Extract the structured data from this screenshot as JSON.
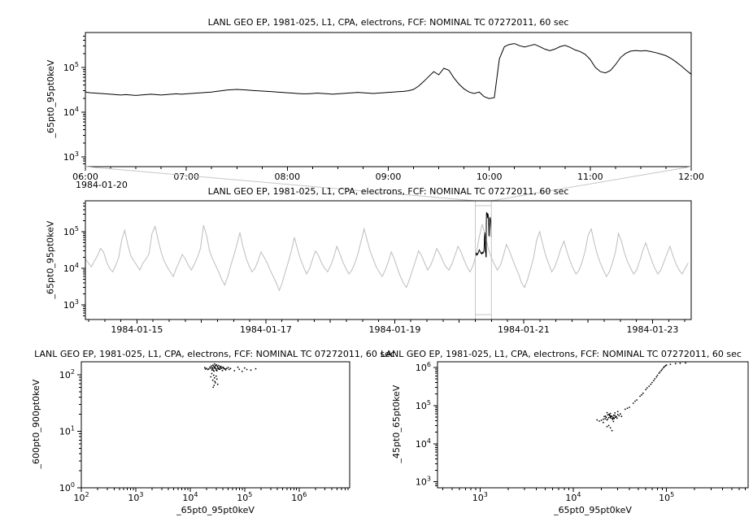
{
  "colors": {
    "background": "#ffffff",
    "foreground": "#000000",
    "context_series": "#bdbdbd",
    "connector": "#c6c6c6"
  },
  "chart_data": [
    {
      "type": "line",
      "title": "LANL GEO EP, 1981-025, L1, CPA, electrons, FCF: NOMINAL TC 07272011, 60 sec",
      "ylabel": "_65pt0_95pt0keV",
      "xlabel": "",
      "line_color": "#000000",
      "x_axis": {
        "kind": "time",
        "unit": "hours",
        "min": 6,
        "max": 12,
        "major_step": 1,
        "minor_step": 0.25,
        "tick_labels": [
          "06:00",
          "07:00",
          "08:00",
          "09:00",
          "10:00",
          "11:00",
          "12:00"
        ],
        "context_label": "1984-01-20"
      },
      "y_axis": {
        "kind": "log",
        "min": 600,
        "max": 600000,
        "tick_exponents": [
          3,
          4,
          5
        ]
      },
      "series": {
        "name": "_65pt0_95pt0keV",
        "x_start": 6,
        "x_step": 0.05,
        "value_scale": 1000,
        "values": [
          28,
          27,
          26.5,
          26,
          25.5,
          25,
          24.5,
          24,
          24.5,
          24,
          23.5,
          24,
          24.5,
          25,
          24.5,
          24,
          24.5,
          25,
          25.5,
          25,
          25.5,
          26,
          26.5,
          27,
          27.5,
          28,
          29,
          30,
          31,
          31.5,
          32,
          31.5,
          31,
          30.5,
          30,
          29.5,
          29,
          28.5,
          28,
          27.5,
          27,
          26.5,
          26,
          25.5,
          25.5,
          26,
          26.5,
          26,
          25.5,
          25,
          25.5,
          26,
          26.5,
          27,
          27.5,
          27,
          26.5,
          26,
          26.5,
          27,
          27.5,
          28,
          28.5,
          29,
          30,
          32,
          38,
          48,
          62,
          80,
          68,
          95,
          86,
          58,
          42,
          33,
          28,
          26,
          28,
          22,
          20,
          21,
          155,
          290,
          325,
          340,
          305,
          285,
          305,
          325,
          290,
          255,
          235,
          255,
          290,
          310,
          280,
          245,
          225,
          195,
          150,
          100,
          80,
          75,
          85,
          115,
          165,
          205,
          230,
          238,
          232,
          236,
          225,
          212,
          198,
          182,
          158,
          132,
          108,
          86,
          70
        ]
      }
    },
    {
      "type": "line",
      "title": "LANL GEO EP, 1981-025, L1, CPA, electrons, FCF: NOMINAL TC 07272011, 60 sec",
      "ylabel": "_65pt0_95pt0keV",
      "xlabel": "",
      "line_color": "#bdbdbd",
      "x_axis": {
        "kind": "date",
        "min": 14.2,
        "max": 23.6,
        "minor_step": 0.25,
        "day_step": 1,
        "labeled_ticks": [
          {
            "day": 15,
            "label": "1984-01-15"
          },
          {
            "day": 17,
            "label": "1984-01-17"
          },
          {
            "day": 19,
            "label": "1984-01-19"
          },
          {
            "day": 21,
            "label": "1984-01-21"
          },
          {
            "day": 23,
            "label": "1984-01-23"
          }
        ]
      },
      "y_axis": {
        "kind": "log",
        "min": 400,
        "max": 700000,
        "tick_exponents": [
          3,
          4,
          5
        ]
      },
      "series": {
        "name": "_65pt0_95pt0keV",
        "x_start": 14.2,
        "x_step": 0.047,
        "value_scale": 1000,
        "values": [
          18,
          14,
          11,
          16,
          22,
          35,
          28,
          15,
          10,
          8,
          12,
          20,
          60,
          110,
          45,
          22,
          16,
          12,
          9,
          14,
          18,
          25,
          90,
          140,
          60,
          28,
          16,
          11,
          8,
          6,
          10,
          15,
          24,
          18,
          12,
          9,
          13,
          20,
          35,
          150,
          80,
          30,
          18,
          12,
          8,
          5,
          3.5,
          6,
          12,
          22,
          45,
          95,
          40,
          20,
          12,
          8,
          10,
          16,
          28,
          20,
          14,
          9,
          6,
          4,
          2.5,
          4,
          8,
          15,
          30,
          70,
          35,
          18,
          11,
          7,
          10,
          18,
          30,
          22,
          14,
          10,
          8,
          12,
          20,
          40,
          25,
          15,
          10,
          7,
          9,
          14,
          25,
          55,
          120,
          60,
          30,
          18,
          11,
          8,
          6,
          9,
          15,
          28,
          18,
          10,
          6,
          4,
          3,
          5,
          9,
          16,
          30,
          22,
          14,
          9,
          12,
          20,
          35,
          25,
          16,
          11,
          9,
          13,
          22,
          40,
          28,
          17,
          11,
          8,
          12,
          24,
          70,
          160,
          80,
          35,
          20,
          13,
          9,
          12,
          22,
          45,
          30,
          18,
          11,
          7,
          4,
          3,
          5,
          10,
          20,
          60,
          100,
          45,
          22,
          13,
          8,
          11,
          19,
          35,
          55,
          28,
          16,
          10,
          7,
          9,
          15,
          30,
          80,
          120,
          50,
          24,
          14,
          9,
          6,
          8,
          14,
          28,
          90,
          55,
          26,
          15,
          10,
          7,
          9,
          16,
          30,
          50,
          28,
          16,
          10,
          7,
          9,
          15,
          25,
          40,
          22,
          13,
          9,
          7,
          10,
          14
        ]
      },
      "overlay": {
        "source_chart": 0,
        "day": 20,
        "color": "#000000"
      },
      "zoom_box": {
        "day_start": 20.25,
        "day_end": 20.5
      }
    },
    {
      "type": "scatter",
      "title": "LANL GEO EP, 1981-025, L1, CPA, electrons, FCF: NOMINAL TC 07272011, 60 sec",
      "xlabel": "_65pt0_95pt0keV",
      "ylabel": "_600pt0_900pt0keV",
      "x_axis": {
        "kind": "log",
        "min": 100,
        "max": 8500000,
        "tick_exponents": [
          2,
          3,
          4,
          5,
          6
        ]
      },
      "y_axis": {
        "kind": "log",
        "min": 1,
        "max": 170,
        "tick_exponents": [
          0,
          1,
          2
        ]
      },
      "points": [
        [
          26000,
          128
        ],
        [
          28000,
          132
        ],
        [
          30000,
          126
        ],
        [
          32000,
          135
        ],
        [
          27000,
          140
        ],
        [
          25000,
          122
        ],
        [
          31000,
          118
        ],
        [
          29000,
          145
        ],
        [
          33000,
          130
        ],
        [
          35000,
          138
        ],
        [
          24000,
          131
        ],
        [
          22000,
          127
        ],
        [
          30500,
          150
        ],
        [
          28200,
          155
        ],
        [
          26500,
          120
        ],
        [
          34000,
          125
        ],
        [
          36000,
          133
        ],
        [
          23000,
          136
        ],
        [
          21000,
          124
        ],
        [
          29500,
          129
        ],
        [
          31500,
          142
        ],
        [
          27500,
          116
        ],
        [
          25500,
          134
        ],
        [
          33500,
          146
        ],
        [
          30200,
          121
        ],
        [
          28500,
          137
        ],
        [
          32500,
          128
        ],
        [
          24500,
          143
        ],
        [
          26200,
          148
        ],
        [
          35500,
          126
        ],
        [
          38000,
          131
        ],
        [
          40000,
          136
        ],
        [
          42000,
          128
        ],
        [
          45000,
          122
        ],
        [
          37000,
          141
        ],
        [
          39000,
          119
        ],
        [
          41000,
          133
        ],
        [
          44000,
          127
        ],
        [
          47000,
          130
        ],
        [
          50000,
          135
        ],
        [
          20000,
          130
        ],
        [
          19000,
          126
        ],
        [
          18500,
          134
        ],
        [
          52000,
          124
        ],
        [
          55000,
          129
        ],
        [
          27000,
          98
        ],
        [
          28000,
          88
        ],
        [
          26000,
          80
        ],
        [
          29000,
          72
        ],
        [
          27500,
          65
        ],
        [
          30000,
          95
        ],
        [
          25000,
          105
        ],
        [
          31000,
          84
        ],
        [
          28500,
          76
        ],
        [
          24000,
          92
        ],
        [
          32000,
          68
        ],
        [
          26500,
          60
        ],
        [
          65000,
          118
        ],
        [
          80000,
          125
        ],
        [
          100000,
          132
        ],
        [
          130000,
          121
        ],
        [
          160000,
          128
        ],
        [
          90000,
          115
        ],
        [
          110000,
          124
        ],
        [
          75000,
          136
        ]
      ]
    },
    {
      "type": "scatter",
      "title": "LANL GEO EP, 1981-025, L1, CPA, electrons, FCF: NOMINAL TC 07272011, 60 sec",
      "xlabel": "_65pt0_95pt0keV",
      "ylabel": "_45pt0_65pt0keV",
      "x_axis": {
        "kind": "log",
        "min": 350,
        "max": 750000,
        "tick_exponents": [
          3,
          4,
          5
        ]
      },
      "y_axis": {
        "kind": "log",
        "min": 700,
        "max": 1400000,
        "tick_exponents": [
          3,
          4,
          5,
          6
        ]
      },
      "points": [
        [
          24000,
          48000
        ],
        [
          26000,
          52000
        ],
        [
          22000,
          45000
        ],
        [
          28000,
          55000
        ],
        [
          25000,
          50000
        ],
        [
          23000,
          42000
        ],
        [
          27000,
          47000
        ],
        [
          30000,
          58000
        ],
        [
          21000,
          44000
        ],
        [
          29000,
          51000
        ],
        [
          24500,
          56000
        ],
        [
          26500,
          43000
        ],
        [
          22500,
          49000
        ],
        [
          25500,
          53000
        ],
        [
          27500,
          46000
        ],
        [
          23500,
          57000
        ],
        [
          28500,
          50000
        ],
        [
          20000,
          41000
        ],
        [
          31000,
          54000
        ],
        [
          24200,
          59000
        ],
        [
          26200,
          45500
        ],
        [
          22200,
          52500
        ],
        [
          25200,
          47500
        ],
        [
          27200,
          55500
        ],
        [
          23200,
          43500
        ],
        [
          28200,
          49500
        ],
        [
          21500,
          51500
        ],
        [
          29500,
          46500
        ],
        [
          24800,
          53500
        ],
        [
          26800,
          48500
        ],
        [
          32000,
          60000
        ],
        [
          19000,
          39000
        ],
        [
          18000,
          42000
        ],
        [
          33000,
          52000
        ],
        [
          25000,
          62000
        ],
        [
          27000,
          38000
        ],
        [
          23000,
          65000
        ],
        [
          30000,
          70000
        ],
        [
          21000,
          36000
        ],
        [
          28000,
          64000
        ],
        [
          24000,
          30000
        ],
        [
          25000,
          26000
        ],
        [
          26000,
          22000
        ],
        [
          23000,
          28000
        ],
        [
          36000,
          80000
        ],
        [
          38000,
          85000
        ],
        [
          40000,
          90000
        ],
        [
          44000,
          115000
        ],
        [
          48000,
          140000
        ],
        [
          52000,
          175000
        ],
        [
          56000,
          210000
        ],
        [
          60000,
          260000
        ],
        [
          65000,
          320000
        ],
        [
          70000,
          400000
        ],
        [
          75000,
          500000
        ],
        [
          80000,
          620000
        ],
        [
          85000,
          760000
        ],
        [
          90000,
          900000
        ],
        [
          95000,
          1050000
        ],
        [
          100000,
          1150000
        ],
        [
          46000,
          130000
        ],
        [
          54000,
          190000
        ],
        [
          62000,
          290000
        ],
        [
          68000,
          360000
        ],
        [
          73000,
          450000
        ],
        [
          78000,
          560000
        ],
        [
          83000,
          700000
        ],
        [
          88000,
          830000
        ],
        [
          93000,
          980000
        ],
        [
          98000,
          1100000
        ],
        [
          110000,
          1200000
        ],
        [
          125000,
          1250000
        ],
        [
          140000,
          1280000
        ],
        [
          160000,
          1300000
        ]
      ]
    }
  ]
}
